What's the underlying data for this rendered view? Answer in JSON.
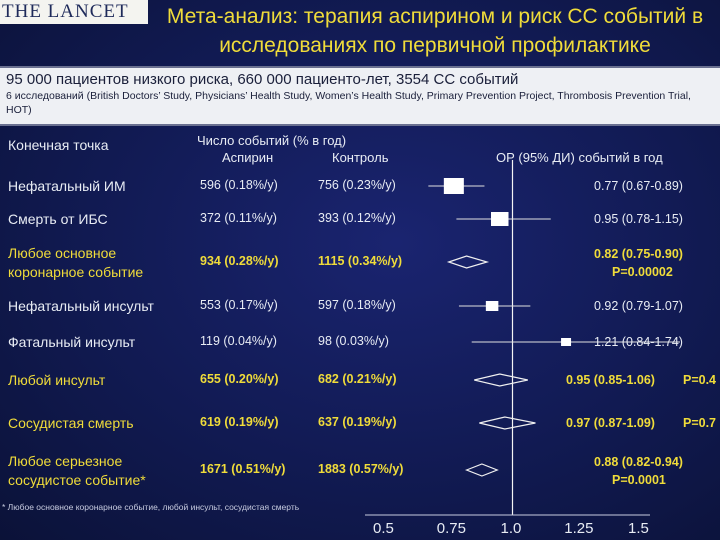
{
  "logo": "THE LANCET",
  "title": "Мета-анализ: терапия аспирином и риск СС событий в исследованиях по первичной профилактике",
  "info": {
    "main": "95 000 пациентов низкого риска, 660 000 пациенто-лет, 3554 СС событий",
    "sub": "6 исследований (British Doctors’ Study, Physicians’ Health Study, Women’s Health Study, Primary Prevention Project, Thrombosis Prevention Trial, HOT)"
  },
  "headers": {
    "endpoint": "Конечная точка",
    "events": "Число событий (% в год)",
    "aspirin": "Аспирин",
    "control": "Контроль",
    "or": "ОР (95% ДИ) событий в год"
  },
  "footnote": "* Любое основное коронарное  событие, любой инсульт, сосудистая смерть",
  "chart_data": {
    "type": "forest",
    "xlim": [
      0.5,
      1.5
    ],
    "reference_line": 1.0,
    "x_ticks": [
      "0.5",
      "0.75",
      "1.0",
      "1.25",
      "1.5"
    ],
    "rows": [
      {
        "label": "Нефатальный ИМ",
        "aspirin": "596 (0.18%/y)",
        "control": "756 (0.23%/y)",
        "or": 0.77,
        "lo": 0.67,
        "hi": 0.89,
        "ci_text": "0.77 (0.67-0.89)",
        "p": "",
        "pooled": false
      },
      {
        "label": "Смерть от ИБС",
        "aspirin": "372 (0.11%/y)",
        "control": "393 (0.12%/y)",
        "or": 0.95,
        "lo": 0.78,
        "hi": 1.15,
        "ci_text": "0.95 (0.78-1.15)",
        "p": "",
        "pooled": false
      },
      {
        "label": "Любое основное коронарное событие",
        "aspirin": "934 (0.28%/y)",
        "control": "1115 (0.34%/y)",
        "or": 0.82,
        "lo": 0.75,
        "hi": 0.9,
        "ci_text": "0.82 (0.75-0.90)",
        "p": "P=0.00002",
        "pooled": true
      },
      {
        "label": "Нефатальный инсульт",
        "aspirin": "553 (0.17%/y)",
        "control": "597 (0.18%/y)",
        "or": 0.92,
        "lo": 0.79,
        "hi": 1.07,
        "ci_text": "0.92 (0.79-1.07)",
        "p": "",
        "pooled": false
      },
      {
        "label": "Фатальный инсульт",
        "aspirin": "119 (0.04%/y)",
        "control": "98 (0.03%/y)",
        "or": 1.21,
        "lo": 0.84,
        "hi": 1.74,
        "ci_text": "1.21 (0.84-1.74)",
        "p": "",
        "pooled": false
      },
      {
        "label": "Любой инсульт",
        "aspirin": "655 (0.20%/y)",
        "control": "682 (0.21%/y)",
        "or": 0.95,
        "lo": 0.85,
        "hi": 1.06,
        "ci_text": "0.95 (0.85-1.06)",
        "p": "P=0.4",
        "pooled": true
      },
      {
        "label": "Сосудистая смерть",
        "aspirin": "619 (0.19%/y)",
        "control": "637 (0.19%/y)",
        "or": 0.97,
        "lo": 0.87,
        "hi": 1.09,
        "ci_text": "0.97 (0.87-1.09)",
        "p": "P=0.7",
        "pooled": true
      },
      {
        "label": "Любое серьезное сосудистое событие*",
        "aspirin": "1671 (0.51%/y)",
        "control": "1883 (0.57%/y)",
        "or": 0.88,
        "lo": 0.82,
        "hi": 0.94,
        "ci_text": "0.88 (0.82-0.94)",
        "p": "P=0.0001",
        "pooled": true
      }
    ]
  }
}
